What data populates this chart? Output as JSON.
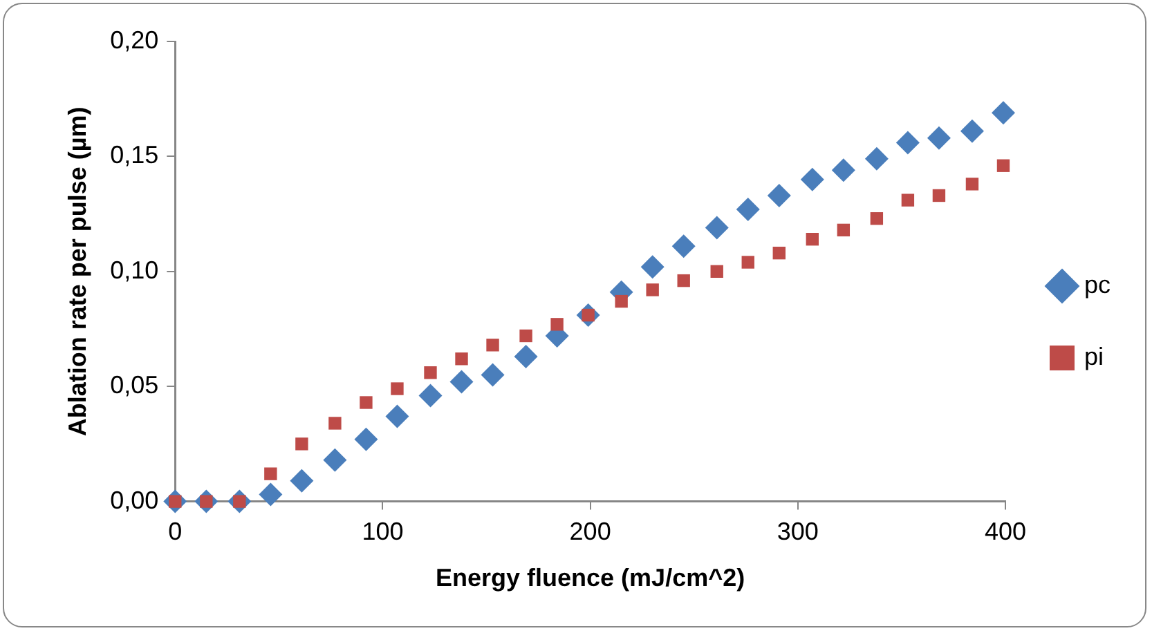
{
  "chart_data": {
    "type": "scatter",
    "xlabel": "Energy fluence (mJ/cm^2)",
    "ylabel": "Ablation rate per pulse (µm)",
    "x": [
      0,
      15,
      31,
      46,
      61,
      77,
      92,
      107,
      123,
      138,
      153,
      169,
      184,
      199,
      215,
      230,
      245,
      261,
      276,
      291,
      307,
      322,
      338,
      353,
      368,
      384,
      399
    ],
    "series": [
      {
        "name": "pc",
        "color": "#4a7ebb",
        "marker": "diamond",
        "values": [
          0,
          0,
          0,
          0.003,
          0.009,
          0.018,
          0.027,
          0.037,
          0.046,
          0.052,
          0.055,
          0.063,
          0.072,
          0.081,
          0.091,
          0.102,
          0.111,
          0.119,
          0.127,
          0.133,
          0.14,
          0.144,
          0.149,
          0.156,
          0.158,
          0.161,
          0.169
        ]
      },
      {
        "name": "pi",
        "color": "#be4b48",
        "marker": "square",
        "values": [
          0,
          0,
          0,
          0.012,
          0.025,
          0.034,
          0.043,
          0.049,
          0.056,
          0.062,
          0.068,
          0.072,
          0.077,
          0.081,
          0.087,
          0.092,
          0.096,
          0.1,
          0.104,
          0.108,
          0.114,
          0.118,
          0.123,
          0.131,
          0.133,
          0.138,
          0.146
        ]
      }
    ],
    "xlim": [
      0,
      400
    ],
    "xticks": [
      0,
      100,
      200,
      300,
      400
    ],
    "ylim": [
      0,
      0.2
    ],
    "yticks": [
      {
        "value": 0,
        "label": "0,00"
      },
      {
        "value": 0.05,
        "label": "0,05"
      },
      {
        "value": 0.1,
        "label": "0,10"
      },
      {
        "value": 0.15,
        "label": "0,15"
      },
      {
        "value": 0.2,
        "label": "0,20"
      }
    ],
    "grid": false,
    "legend": "right"
  }
}
